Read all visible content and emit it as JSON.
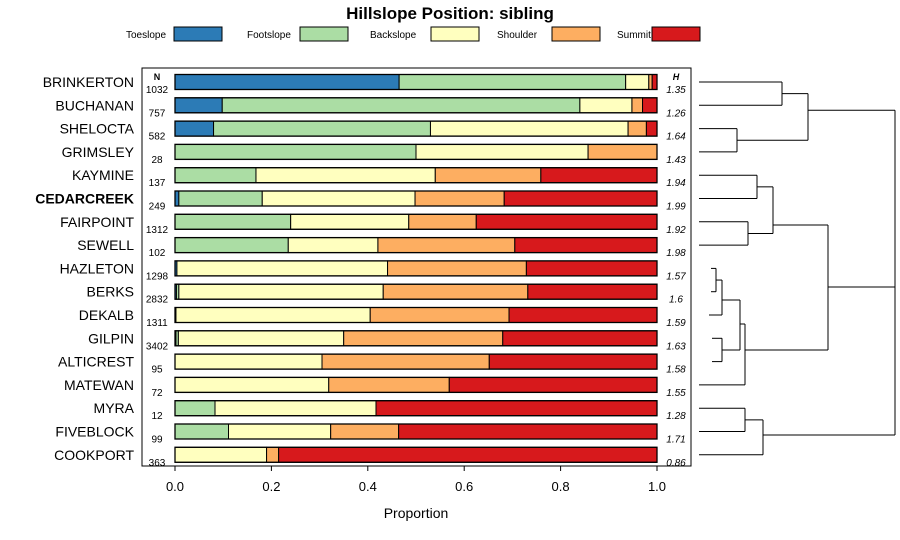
{
  "chart_data": {
    "type": "bar",
    "stacked": true,
    "orientation": "horizontal",
    "title": "Hillslope Position: sibling",
    "xlabel": "Proportion",
    "ylabel": "",
    "xlim": [
      0,
      1
    ],
    "x_ticks": [
      "0.0",
      "0.2",
      "0.4",
      "0.6",
      "0.8",
      "1.0"
    ],
    "x_tick_values": [
      0,
      0.2,
      0.4,
      0.6,
      0.8,
      1.0
    ],
    "n_header": "N",
    "h_header": "H",
    "highlight": "CEDARCREEK",
    "legend": [
      {
        "name": "Toeslope",
        "color": "#2c7bb6"
      },
      {
        "name": "Footslope",
        "color": "#abdda4"
      },
      {
        "name": "Backslope",
        "color": "#ffffbf"
      },
      {
        "name": "Shoulder",
        "color": "#fdae61"
      },
      {
        "name": "Summit",
        "color": "#d7191c"
      }
    ],
    "rows": [
      {
        "name": "BRINKERTON",
        "n": "1032",
        "h": "1.35",
        "values": [
          0.465,
          0.47,
          0.048,
          0.007,
          0.01
        ]
      },
      {
        "name": "BUCHANAN",
        "n": "757",
        "h": "1.26",
        "values": [
          0.098,
          0.742,
          0.108,
          0.022,
          0.03
        ]
      },
      {
        "name": "SHELOCTA",
        "n": "582",
        "h": "1.64",
        "values": [
          0.08,
          0.45,
          0.41,
          0.038,
          0.022
        ]
      },
      {
        "name": "GRIMSLEY",
        "n": "28",
        "h": "1.43",
        "values": [
          0.0,
          0.5,
          0.357,
          0.143,
          0.0
        ]
      },
      {
        "name": "KAYMINE",
        "n": "137",
        "h": "1.94",
        "values": [
          0.0,
          0.168,
          0.372,
          0.219,
          0.241
        ]
      },
      {
        "name": "CEDARCREEK",
        "n": "249",
        "h": "1.99",
        "values": [
          0.008,
          0.173,
          0.317,
          0.185,
          0.317
        ]
      },
      {
        "name": "FAIRPOINT",
        "n": "1312",
        "h": "1.92",
        "values": [
          0.0,
          0.24,
          0.245,
          0.14,
          0.375
        ]
      },
      {
        "name": "SEWELL",
        "n": "102",
        "h": "1.98",
        "values": [
          0.0,
          0.235,
          0.186,
          0.284,
          0.295
        ]
      },
      {
        "name": "HAZLETON",
        "n": "1298",
        "h": "1.57",
        "values": [
          0.004,
          0.0,
          0.437,
          0.288,
          0.271
        ]
      },
      {
        "name": "BERKS",
        "n": "2832",
        "h": "1.6",
        "values": [
          0.003,
          0.005,
          0.424,
          0.3,
          0.268
        ]
      },
      {
        "name": "DEKALB",
        "n": "1311",
        "h": "1.59",
        "values": [
          0.002,
          0.0,
          0.403,
          0.288,
          0.307
        ]
      },
      {
        "name": "GILPIN",
        "n": "3402",
        "h": "1.63",
        "values": [
          0.002,
          0.005,
          0.343,
          0.33,
          0.32
        ]
      },
      {
        "name": "ALTICREST",
        "n": "95",
        "h": "1.58",
        "values": [
          0.0,
          0.0,
          0.305,
          0.347,
          0.348
        ]
      },
      {
        "name": "MATEWAN",
        "n": "72",
        "h": "1.55",
        "values": [
          0.0,
          0.0,
          0.319,
          0.25,
          0.431
        ]
      },
      {
        "name": "MYRA",
        "n": "12",
        "h": "1.28",
        "values": [
          0.0,
          0.083,
          0.334,
          0.0,
          0.583
        ]
      },
      {
        "name": "FIVEBLOCK",
        "n": "99",
        "h": "1.71",
        "values": [
          0.0,
          0.111,
          0.212,
          0.141,
          0.536
        ]
      },
      {
        "name": "COOKPORT",
        "n": "363",
        "h": "0.86",
        "values": [
          0.0,
          0.0,
          0.19,
          0.025,
          0.785
        ]
      }
    ]
  }
}
